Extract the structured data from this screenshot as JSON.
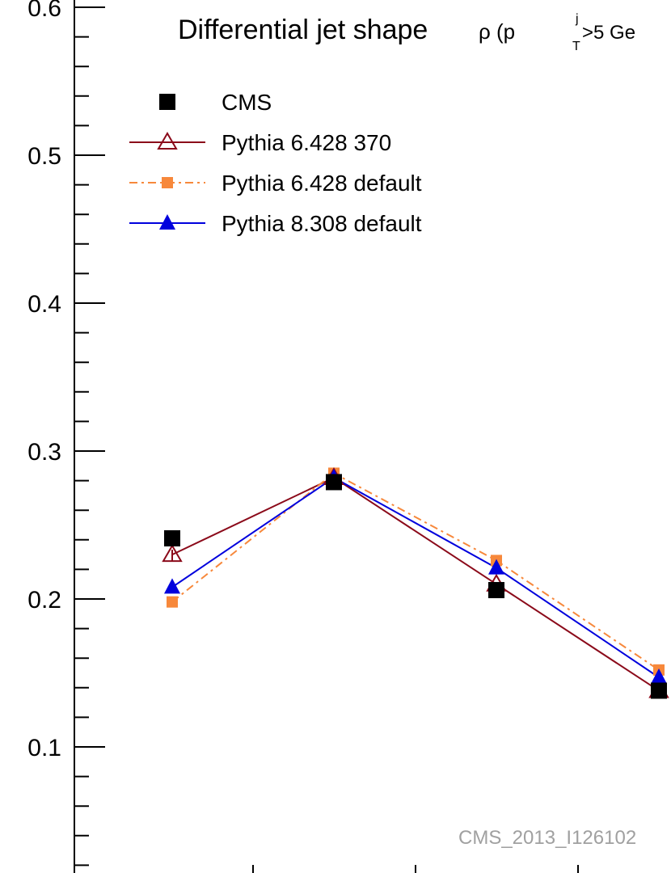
{
  "chart_data": {
    "type": "line",
    "title": {
      "main": "Differential jet shape",
      "rho": "ρ (p",
      "sup": "j",
      "sub": "T",
      "cut": ">5 Ge"
    },
    "watermark": "CMS_2013_I126102",
    "x": [
      1,
      2,
      3,
      4
    ],
    "ylim": [
      0.0,
      0.6
    ],
    "yticks": [
      "0.1",
      "0.2",
      "0.3",
      "0.4",
      "0.5",
      "0.6"
    ],
    "series": [
      {
        "name": "CMS",
        "values": [
          0.241,
          0.279,
          0.206,
          0.138
        ],
        "color": "#000000",
        "marker": "square",
        "line": "none"
      },
      {
        "name": "Pythia 6.428 370",
        "values": [
          0.23,
          0.282,
          0.21,
          0.138
        ],
        "color": "#8b0a1a",
        "marker": "open-triangle",
        "line": "solid"
      },
      {
        "name": "Pythia 6.428 default",
        "values": [
          0.198,
          0.285,
          0.226,
          0.152
        ],
        "color": "#f7883b",
        "marker": "small-square",
        "line": "dashdot"
      },
      {
        "name": "Pythia 8.308 default",
        "values": [
          0.208,
          0.282,
          0.221,
          0.147
        ],
        "color": "#0000dd",
        "marker": "filled-triangle",
        "line": "solid"
      }
    ]
  }
}
